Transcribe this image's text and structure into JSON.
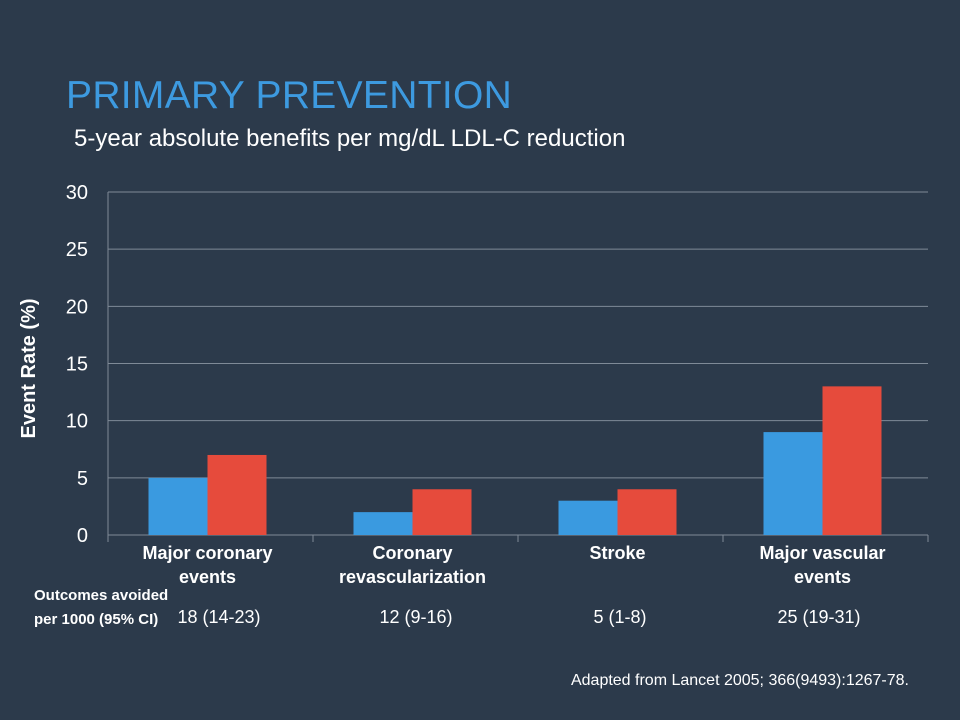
{
  "slide": {
    "title": "PRIMARY PREVENTION",
    "subtitle": "5-year absolute benefits per mg/dL LDL-C reduction",
    "source": "Adapted from Lancet 2005; 366(9493):1267-78."
  },
  "outcomes": {
    "label": "Outcomes avoided per 1000 (95% CI)",
    "values": [
      "18 (14-23)",
      "12 (9-16)",
      "5 (1-8)",
      "25 (19-31)"
    ]
  },
  "colors": {
    "background": "#2c3a4b",
    "title": "#3d9ae0",
    "series_blue": "#3a9ae0",
    "series_red": "#e64b3c",
    "grid": "#7f8a97"
  },
  "chart_data": {
    "type": "bar",
    "categories": [
      [
        "Major coronary",
        "events"
      ],
      [
        "Coronary",
        "revascularization"
      ],
      [
        "Stroke"
      ],
      [
        "Major vascular",
        "events"
      ]
    ],
    "series": [
      {
        "color": "#3a9ae0",
        "values": [
          5,
          2,
          3,
          9
        ]
      },
      {
        "color": "#e64b3c",
        "values": [
          7,
          4,
          4,
          13
        ]
      }
    ],
    "ylabel": "Event Rate (%)",
    "ylim": [
      0,
      30
    ],
    "yticks": [
      0,
      5,
      10,
      15,
      20,
      25,
      30
    ],
    "grid": true
  }
}
